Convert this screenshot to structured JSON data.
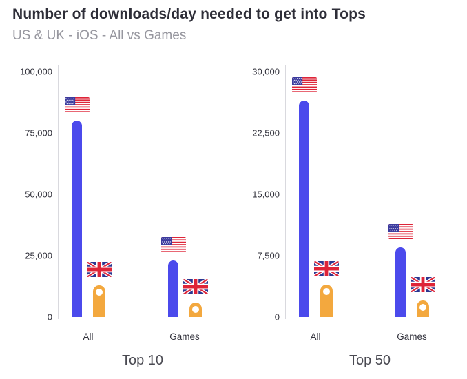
{
  "header": {
    "title": "Number of downloads/day needed to get into Tops",
    "subtitle": "US & UK - iOS - All vs Games"
  },
  "colors": {
    "us_bar": "#4b4aec",
    "uk_bar": "#f3a83e",
    "title_text": "#2e2e38",
    "subtitle_text": "#97979f",
    "axis_line": "#d9d9de",
    "tick_text": "#33333d",
    "chart_title_text": "#4a4a52"
  },
  "icons": {
    "us": "us-flag-icon",
    "uk": "uk-flag-icon"
  },
  "chart_data": [
    {
      "type": "bar",
      "title": "Top 10",
      "categories": [
        "All",
        "Games"
      ],
      "series": [
        {
          "name": "US",
          "flag": "us",
          "values": [
            80000,
            23000
          ]
        },
        {
          "name": "UK",
          "flag": "uk",
          "values": [
            13000,
            6000
          ]
        }
      ],
      "ylim": [
        0,
        100000
      ],
      "yticks": [
        "100,000",
        "75,000",
        "50,000",
        "25,000",
        "0"
      ],
      "grid": false,
      "legend": "flags-above-bars"
    },
    {
      "type": "bar",
      "title": "Top 50",
      "categories": [
        "All",
        "Games"
      ],
      "series": [
        {
          "name": "US",
          "flag": "us",
          "values": [
            26500,
            8500
          ]
        },
        {
          "name": "UK",
          "flag": "uk",
          "values": [
            4000,
            2000
          ]
        }
      ],
      "ylim": [
        0,
        30000
      ],
      "yticks": [
        "30,000",
        "22,500",
        "15,000",
        "7,500",
        "0"
      ],
      "grid": false,
      "legend": "flags-above-bars"
    }
  ]
}
